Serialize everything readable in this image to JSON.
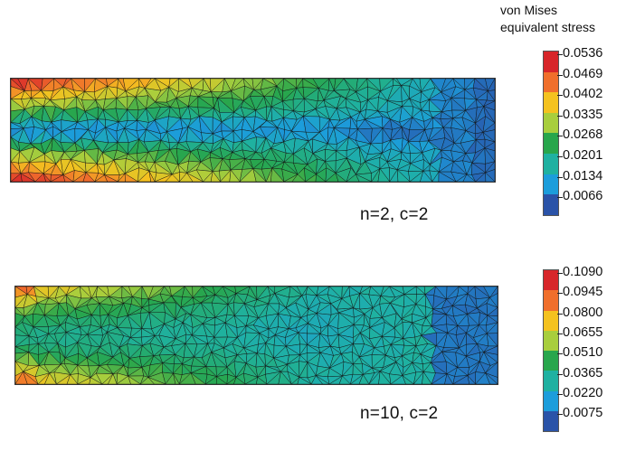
{
  "legend_title": [
    "von Mises",
    "equivalent stress"
  ],
  "panels": [
    {
      "label": "n=2, c=2",
      "colorbar_values": [
        "0.0536",
        "0.0469",
        "0.0402",
        "0.0335",
        "0.0268",
        "0.0201",
        "0.0134",
        "0.0066"
      ]
    },
    {
      "label": "n=10, c=2",
      "colorbar_values": [
        "0.1090",
        "0.0945",
        "0.0800",
        "0.0655",
        "0.0510",
        "0.0365",
        "0.0220",
        "0.0075"
      ]
    }
  ],
  "colormap": [
    "#d7262a",
    "#f06f2c",
    "#f4c21f",
    "#a8ce3d",
    "#28a64c",
    "#1fb1a1",
    "#1c9ddb",
    "#2a53a8"
  ]
}
